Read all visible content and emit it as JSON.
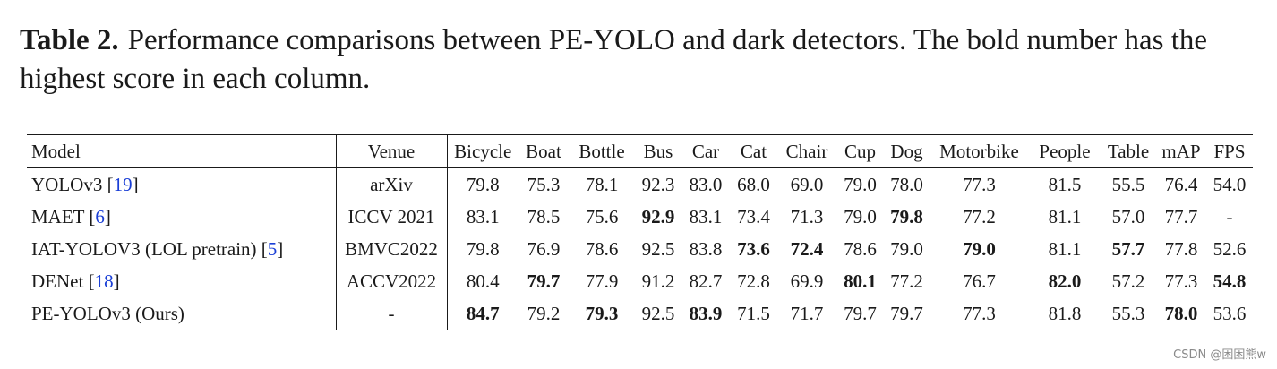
{
  "caption": {
    "label": "Table 2.",
    "text": "Performance comparisons between PE-YOLO and dark detectors. The bold number has the highest score in each column."
  },
  "table": {
    "columns": [
      "Model",
      "Venue",
      "Bicycle",
      "Boat",
      "Bottle",
      "Bus",
      "Car",
      "Cat",
      "Chair",
      "Cup",
      "Dog",
      "Motorbike",
      "People",
      "Table",
      "mAP",
      "FPS"
    ],
    "rows": [
      {
        "model": "YOLOv3",
        "ref": "19",
        "venue": "arXiv",
        "values": [
          "79.8",
          "75.3",
          "78.1",
          "92.3",
          "83.0",
          "68.0",
          "69.0",
          "79.0",
          "78.0",
          "77.3",
          "81.5",
          "55.5",
          "76.4",
          "54.0"
        ],
        "bold": [
          false,
          false,
          false,
          false,
          false,
          false,
          false,
          false,
          false,
          false,
          false,
          false,
          false,
          false
        ]
      },
      {
        "model": "MAET",
        "ref": "6",
        "venue": "ICCV 2021",
        "values": [
          "83.1",
          "78.5",
          "75.6",
          "92.9",
          "83.1",
          "73.4",
          "71.3",
          "79.0",
          "79.8",
          "77.2",
          "81.1",
          "57.0",
          "77.7",
          "-"
        ],
        "bold": [
          false,
          false,
          false,
          true,
          false,
          false,
          false,
          false,
          true,
          false,
          false,
          false,
          false,
          false
        ]
      },
      {
        "model": "IAT-YOLOV3 (LOL pretrain)",
        "ref": "5",
        "venue": "BMVC2022",
        "values": [
          "79.8",
          "76.9",
          "78.6",
          "92.5",
          "83.8",
          "73.6",
          "72.4",
          "78.6",
          "79.0",
          "79.0",
          "81.1",
          "57.7",
          "77.8",
          "52.6"
        ],
        "bold": [
          false,
          false,
          false,
          false,
          false,
          true,
          true,
          false,
          false,
          true,
          false,
          true,
          false,
          false
        ]
      },
      {
        "model": "DENet",
        "ref": "18",
        "venue": "ACCV2022",
        "values": [
          "80.4",
          "79.7",
          "77.9",
          "91.2",
          "82.7",
          "72.8",
          "69.9",
          "80.1",
          "77.2",
          "76.7",
          "82.0",
          "57.2",
          "77.3",
          "54.8"
        ],
        "bold": [
          false,
          true,
          false,
          false,
          false,
          false,
          false,
          true,
          false,
          false,
          true,
          false,
          false,
          true
        ]
      },
      {
        "model": "PE-YOLOv3 (Ours)",
        "ref": "",
        "venue": "-",
        "values": [
          "84.7",
          "79.2",
          "79.3",
          "92.5",
          "83.9",
          "71.5",
          "71.7",
          "79.7",
          "79.7",
          "77.3",
          "81.8",
          "55.3",
          "78.0",
          "53.6"
        ],
        "bold": [
          true,
          false,
          true,
          false,
          true,
          false,
          false,
          false,
          false,
          false,
          false,
          false,
          true,
          false
        ]
      }
    ]
  },
  "watermark": "CSDN @困困熊w"
}
